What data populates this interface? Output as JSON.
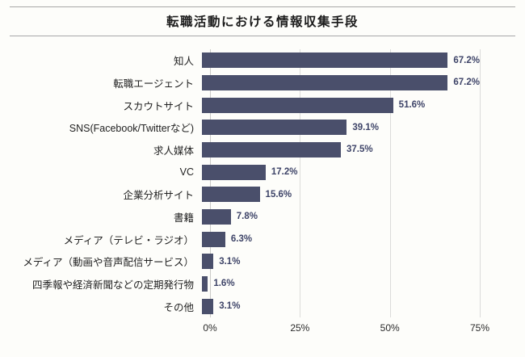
{
  "title": "転職活動における情報収集手段",
  "chart_data": {
    "type": "bar",
    "orientation": "horizontal",
    "title": "転職活動における情報収集手段",
    "categories": [
      "知人",
      "転職エージェント",
      "スカウトサイト",
      "SNS(Facebook/Twitterなど)",
      "求人媒体",
      "VC",
      "企業分析サイト",
      "書籍",
      "メディア（テレビ・ラジオ）",
      "メディア（動画や音声配信サービス）",
      "四季報や経済新聞などの定期発行物",
      "その他"
    ],
    "values": [
      67.2,
      67.2,
      51.6,
      39.1,
      37.5,
      17.2,
      15.6,
      7.8,
      6.3,
      3.1,
      1.6,
      3.1
    ],
    "value_labels": [
      "67.2%",
      "67.2%",
      "51.6%",
      "39.1%",
      "37.5%",
      "17.2%",
      "15.6%",
      "7.8%",
      "6.3%",
      "3.1%",
      "1.6%",
      "3.1%"
    ],
    "x_ticks": [
      "0%",
      "25%",
      "50%",
      "75%"
    ],
    "xlim": [
      0,
      75
    ],
    "grid": true,
    "legend": "none",
    "bar_color": "#4a4f6b",
    "value_label_color": "#3e4468"
  }
}
